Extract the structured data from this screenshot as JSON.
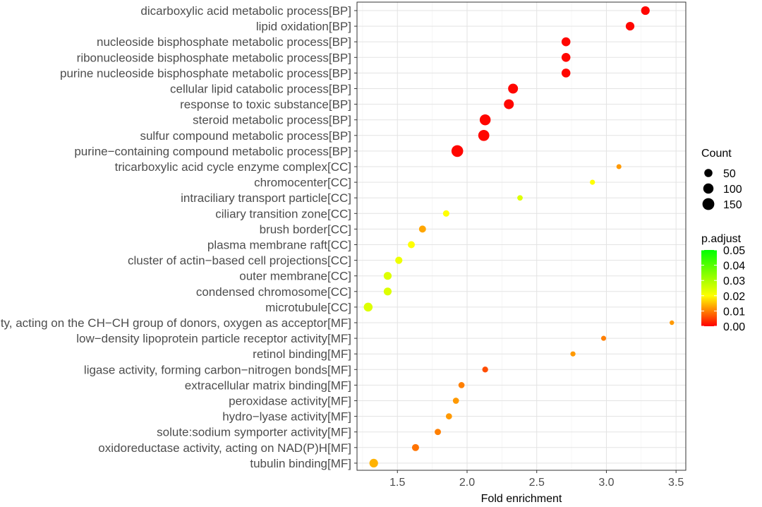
{
  "chart_data": {
    "type": "scatter",
    "title": "",
    "xlabel": "Fold enrichment",
    "ylabel": "",
    "xlim": [
      1.21,
      3.57
    ],
    "xticks": [
      1.5,
      2.0,
      2.5,
      3.0,
      3.5
    ],
    "xtick_labels": [
      "1.5",
      "2.0",
      "2.5",
      "3.0",
      "3.5"
    ],
    "grid": true,
    "legend_position": "right",
    "size_legend": {
      "title": "Count",
      "entries": [
        {
          "label": "50",
          "value": 50
        },
        {
          "label": "100",
          "value": 100
        },
        {
          "label": "150",
          "value": 150
        }
      ]
    },
    "color_legend": {
      "title": "p.adjust",
      "low_color": "#ff0000",
      "mid_color": "#ffff00",
      "high_color": "#00ff00",
      "ticks": [
        {
          "label": "0.05",
          "value": 0.05
        },
        {
          "label": "0.04",
          "value": 0.04
        },
        {
          "label": "0.03",
          "value": 0.03
        },
        {
          "label": "0.02",
          "value": 0.02
        },
        {
          "label": "0.01",
          "value": 0.01
        },
        {
          "label": "0.00",
          "value": 0.0
        }
      ]
    },
    "points": [
      {
        "term": "dicarboxylic acid metabolic process[BP]",
        "x": 3.28,
        "count": 60,
        "padj": 0.0005
      },
      {
        "term": "lipid oxidation[BP]",
        "x": 3.17,
        "count": 60,
        "padj": 0.0005
      },
      {
        "term": "nucleoside bisphosphate metabolic process[BP]",
        "x": 2.71,
        "count": 65,
        "padj": 0.0005
      },
      {
        "term": "ribonucleoside bisphosphate metabolic process[BP]",
        "x": 2.71,
        "count": 65,
        "padj": 0.0005
      },
      {
        "term": "purine nucleoside bisphosphate metabolic process[BP]",
        "x": 2.71,
        "count": 65,
        "padj": 0.0005
      },
      {
        "term": "cellular lipid catabolic process[BP]",
        "x": 2.33,
        "count": 90,
        "padj": 0.0005
      },
      {
        "term": "response to toxic substance[BP]",
        "x": 2.3,
        "count": 90,
        "padj": 0.0005
      },
      {
        "term": "steroid metabolic process[BP]",
        "x": 2.13,
        "count": 120,
        "padj": 0.0005
      },
      {
        "term": "sulfur compound metabolic process[BP]",
        "x": 2.12,
        "count": 125,
        "padj": 0.0005
      },
      {
        "term": "purine−containing compound metabolic process[BP]",
        "x": 1.93,
        "count": 145,
        "padj": 0.0005
      },
      {
        "term": "tricarboxylic acid cycle enzyme complex[CC]",
        "x": 3.09,
        "count": 7,
        "padj": 0.012
      },
      {
        "term": "chromocenter[CC]",
        "x": 2.9,
        "count": 8,
        "padj": 0.02
      },
      {
        "term": "intraciliary transport particle[CC]",
        "x": 2.38,
        "count": 11,
        "padj": 0.024
      },
      {
        "term": "ciliary transition zone[CC]",
        "x": 1.85,
        "count": 22,
        "padj": 0.02
      },
      {
        "term": "brush border[CC]",
        "x": 1.68,
        "count": 30,
        "padj": 0.013
      },
      {
        "term": "plasma membrane raft[CC]",
        "x": 1.6,
        "count": 30,
        "padj": 0.02
      },
      {
        "term": "cluster of actin−based cell projections[CC]",
        "x": 1.51,
        "count": 33,
        "padj": 0.022
      },
      {
        "term": "outer membrane[CC]",
        "x": 1.43,
        "count": 45,
        "padj": 0.024
      },
      {
        "term": "condensed chromosome[CC]",
        "x": 1.43,
        "count": 45,
        "padj": 0.024
      },
      {
        "term": "microtubule[CC]",
        "x": 1.29,
        "count": 65,
        "padj": 0.024
      },
      {
        "term": "oxidoreductase activity, acting on the CH−CH group of donors, oxygen as acceptor[MF]",
        "x": 3.47,
        "count": 4,
        "padj": 0.012
      },
      {
        "term": "low−density lipoprotein particle receptor activity[MF]",
        "x": 2.98,
        "count": 7,
        "padj": 0.01
      },
      {
        "term": "retinol binding[MF]",
        "x": 2.76,
        "count": 8,
        "padj": 0.012
      },
      {
        "term": "ligase activity, forming carbon−nitrogen bonds[MF]",
        "x": 2.13,
        "count": 15,
        "padj": 0.006
      },
      {
        "term": "extracellular matrix binding[MF]",
        "x": 1.96,
        "count": 18,
        "padj": 0.01
      },
      {
        "term": "peroxidase activity[MF]",
        "x": 1.92,
        "count": 18,
        "padj": 0.012
      },
      {
        "term": "hydro−lyase activity[MF]",
        "x": 1.87,
        "count": 18,
        "padj": 0.012
      },
      {
        "term": "solute:sodium symporter activity[MF]",
        "x": 1.79,
        "count": 20,
        "padj": 0.01
      },
      {
        "term": "oxidoreductase activity, acting on NAD(P)H[MF]",
        "x": 1.63,
        "count": 30,
        "padj": 0.009
      },
      {
        "term": "tubulin binding[MF]",
        "x": 1.33,
        "count": 60,
        "padj": 0.014
      }
    ]
  }
}
